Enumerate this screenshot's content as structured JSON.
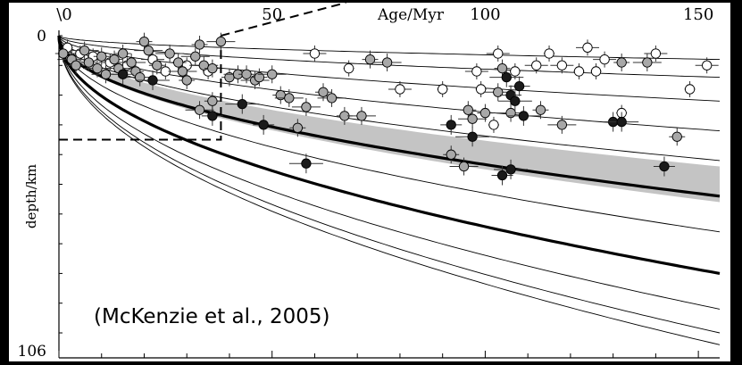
{
  "chart_data": {
    "type": "scatter",
    "xlabel": "Age/Myr",
    "ylabel": "depth/km",
    "xlim": [
      0,
      155
    ],
    "ylim": [
      0,
      106
    ],
    "y_inverted": true,
    "x_axis_position": "top",
    "x_ticks": [
      {
        "value": 0,
        "label": "\\0"
      },
      {
        "value": 50,
        "label": "50"
      },
      {
        "value": 100,
        "label": "100"
      },
      {
        "value": 150,
        "label": "150"
      }
    ],
    "y_ticks": [
      {
        "value": 0,
        "label": "0"
      },
      {
        "value": 106,
        "label": "106"
      }
    ],
    "annotation": "(McKenzie et al., 2005)",
    "inset_box": {
      "x0": 0,
      "x1": 38,
      "y0": 0,
      "y1": 35
    },
    "isotherm_depths_at_max_age": [
      8,
      14,
      22,
      32,
      42,
      54,
      66,
      80,
      92,
      100,
      104
    ],
    "highlighted_isotherm_depths_at_max_age": [
      54,
      80
    ],
    "shaded_band": {
      "upper_depth_at_max_age": 44,
      "lower_depth_at_max_age": 56
    },
    "series": [
      {
        "marker": "open",
        "color": "#ffffff",
        "points": [
          [
            2,
            4
          ],
          [
            5,
            6
          ],
          [
            8,
            7
          ],
          [
            12,
            9
          ],
          [
            16,
            10
          ],
          [
            22,
            8
          ],
          [
            25,
            12
          ],
          [
            30,
            10
          ],
          [
            35,
            12
          ],
          [
            60,
            6
          ],
          [
            68,
            11
          ],
          [
            80,
            18
          ],
          [
            90,
            18
          ],
          [
            98,
            12
          ],
          [
            99,
            18
          ],
          [
            103,
            6
          ],
          [
            107,
            12
          ],
          [
            112,
            10
          ],
          [
            115,
            6
          ],
          [
            118,
            10
          ],
          [
            122,
            12
          ],
          [
            124,
            4
          ],
          [
            126,
            12
          ],
          [
            128,
            8
          ],
          [
            132,
            26
          ],
          [
            140,
            6
          ],
          [
            148,
            18
          ],
          [
            152,
            10
          ],
          [
            102,
            30
          ]
        ]
      },
      {
        "marker": "grey",
        "color": "#a8a8a8",
        "points": [
          [
            1,
            6
          ],
          [
            3,
            8
          ],
          [
            4,
            10
          ],
          [
            6,
            5
          ],
          [
            7,
            9
          ],
          [
            9,
            11
          ],
          [
            10,
            7
          ],
          [
            11,
            13
          ],
          [
            13,
            8
          ],
          [
            14,
            11
          ],
          [
            15,
            6
          ],
          [
            17,
            9
          ],
          [
            18,
            12
          ],
          [
            19,
            14
          ],
          [
            20,
            2
          ],
          [
            21,
            5
          ],
          [
            23,
            10
          ],
          [
            26,
            6
          ],
          [
            28,
            9
          ],
          [
            29,
            12
          ],
          [
            30,
            15
          ],
          [
            32,
            7
          ],
          [
            33,
            3
          ],
          [
            34,
            10
          ],
          [
            36,
            11
          ],
          [
            38,
            2
          ],
          [
            40,
            14
          ],
          [
            42,
            13
          ],
          [
            44,
            13
          ],
          [
            46,
            15
          ],
          [
            47,
            14
          ],
          [
            50,
            13
          ],
          [
            52,
            20
          ],
          [
            54,
            21
          ],
          [
            56,
            31
          ],
          [
            58,
            24
          ],
          [
            62,
            19
          ],
          [
            64,
            21
          ],
          [
            67,
            27
          ],
          [
            71,
            27
          ],
          [
            73,
            8
          ],
          [
            77,
            9
          ],
          [
            92,
            40
          ],
          [
            95,
            44
          ],
          [
            96,
            25
          ],
          [
            97,
            28
          ],
          [
            100,
            26
          ],
          [
            103,
            19
          ],
          [
            104,
            11
          ],
          [
            106,
            26
          ],
          [
            113,
            25
          ],
          [
            118,
            30
          ],
          [
            132,
            9
          ],
          [
            138,
            9
          ],
          [
            145,
            34
          ],
          [
            33,
            25
          ],
          [
            36,
            22
          ]
        ]
      },
      {
        "marker": "filled",
        "color": "#1a1a1a",
        "points": [
          [
            15,
            13
          ],
          [
            22,
            15
          ],
          [
            36,
            27
          ],
          [
            43,
            23
          ],
          [
            48,
            30
          ],
          [
            58,
            43
          ],
          [
            92,
            30
          ],
          [
            97,
            34
          ],
          [
            104,
            47
          ],
          [
            105,
            14
          ],
          [
            106,
            20
          ],
          [
            107,
            22
          ],
          [
            108,
            17
          ],
          [
            109,
            27
          ],
          [
            130,
            29
          ],
          [
            132,
            29
          ],
          [
            142,
            44
          ],
          [
            106,
            45
          ]
        ]
      }
    ]
  }
}
